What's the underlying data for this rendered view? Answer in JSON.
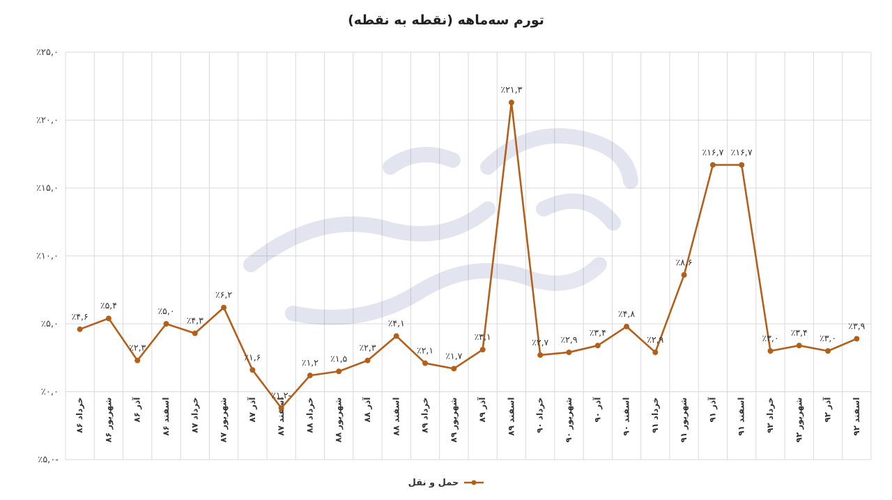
{
  "colors": {
    "series": "#B35F1A",
    "grid": "#D9D9D9",
    "background": "#ffffff"
  },
  "chart_data": {
    "type": "line",
    "title": "تورم سه‌ماهه (نقطه به نقطه)",
    "xlabel": "",
    "ylabel": "",
    "ylim": [
      -5,
      25
    ],
    "yticks": [
      -5,
      0,
      5,
      10,
      15,
      20,
      25
    ],
    "ytick_labels": [
      "٪۵,۰-",
      "٪۰,۰",
      "٪۵,۰",
      "٪۱۰,۰",
      "٪۱۵,۰",
      "٪۲۰,۰",
      "٪۲۵,۰"
    ],
    "grid": true,
    "legend_position": "bottom-center",
    "categories": [
      "خرداد ۸۶",
      "شهریور ۸۶",
      "آذر ۸۶",
      "اسفند ۸۶",
      "خرداد ۸۷",
      "شهریور ۸۷",
      "آذر ۸۷",
      "اسفند ۸۷",
      "خرداد ۸۸",
      "شهریور ۸۸",
      "آذر ۸۸",
      "اسفند ۸۸",
      "خرداد ۸۹",
      "شهریور ۸۹",
      "آذر ۸۹",
      "اسفند ۸۹",
      "خرداد ۹۰",
      "شهریور ۹۰",
      "آذر ۹۰",
      "اسفند ۹۰",
      "خرداد ۹۱",
      "شهریور ۹۱",
      "آذر ۹۱",
      "اسفند ۹۱",
      "خرداد ۹۲",
      "شهریور ۹۲",
      "آذر ۹۲",
      "اسفند ۹۲"
    ],
    "series": [
      {
        "name": "حمل و نقل",
        "values": [
          4.6,
          5.4,
          2.3,
          5.0,
          4.3,
          6.2,
          1.6,
          -1.2,
          1.2,
          1.5,
          2.3,
          4.1,
          2.1,
          1.7,
          3.1,
          21.3,
          2.7,
          2.9,
          3.4,
          4.8,
          2.9,
          8.6,
          16.7,
          16.7,
          3.0,
          3.4,
          3.0,
          3.9
        ],
        "labels": [
          "٪۴,۶",
          "٪۵,۴",
          "٪۲,۳",
          "٪۵,۰",
          "٪۴,۳",
          "٪۶,۲",
          "٪۱,۶",
          "٪۱,۲-",
          "٪۱,۲",
          "٪۱,۵",
          "٪۲,۳",
          "٪۴,۱",
          "٪۲,۱",
          "٪۱,۷",
          "٪۳,۱",
          "٪۲۱,۳",
          "٪۲,۷",
          "٪۲,۹",
          "٪۳,۴",
          "٪۴,۸",
          "٪۲,۹",
          "٪۸,۶",
          "٪۱۶,۷",
          "٪۱۶,۷",
          "٪۳,۰",
          "٪۳,۴",
          "٪۳,۰",
          "٪۳,۹"
        ]
      }
    ]
  }
}
